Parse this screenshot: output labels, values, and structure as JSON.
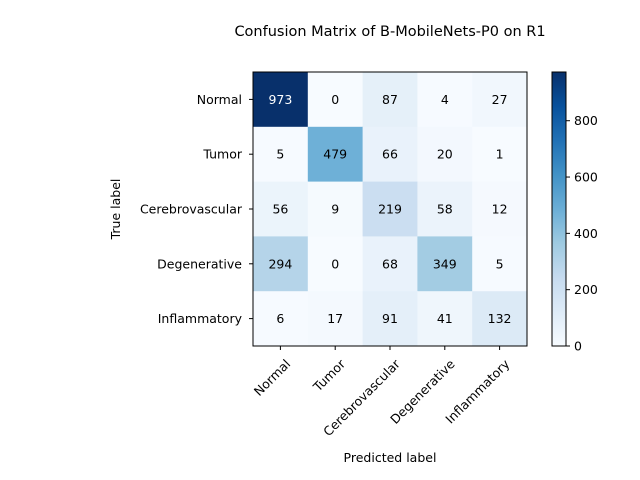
{
  "chart_data": {
    "type": "heatmap",
    "title": "Confusion Matrix of B-MobileNets-P0 on R1",
    "xlabel": "Predicted label",
    "ylabel": "True label",
    "x_categories": [
      "Normal",
      "Tumor",
      "Cerebrovascular",
      "Degenerative",
      "Inflammatory"
    ],
    "y_categories": [
      "Normal",
      "Tumor",
      "Cerebrovascular",
      "Degenerative",
      "Inflammatory"
    ],
    "values": [
      [
        973,
        0,
        87,
        4,
        27
      ],
      [
        5,
        479,
        66,
        20,
        1
      ],
      [
        56,
        9,
        219,
        58,
        12
      ],
      [
        294,
        0,
        68,
        349,
        5
      ],
      [
        6,
        17,
        91,
        41,
        132
      ]
    ],
    "colormap": "Blues",
    "vmin": 0,
    "vmax": 973,
    "colorbar_ticks": [
      0,
      200,
      400,
      600,
      800
    ],
    "grid": false,
    "legend": "colorbar-right"
  }
}
